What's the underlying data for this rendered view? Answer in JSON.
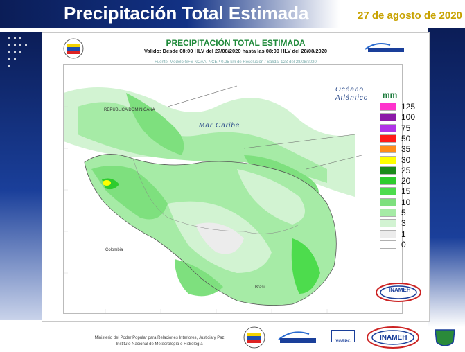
{
  "header": {
    "title": "Precipitación Total Estimada",
    "date": "27 de agosto de 2020"
  },
  "map": {
    "title": "PRECIPITACIÓN TOTAL ESTIMADA",
    "validity": "Valido: Desde 08:00 HLV del 27/08/2020 hasta las 08:00 HLV del 28/08/2020",
    "source": "Fuente: Modelo GFS NOAA_NCEP 0.25 km de Resolución / Salida: 12Z del 28/08/2020",
    "labels": {
      "mar_caribe": "Mar Caribe",
      "oceano": "Océano",
      "atlantico": "Atlántico",
      "colombia": "Colombia",
      "brasil": "Brasil",
      "rep_dominicana": "REPÚBLICA DOMINICANA"
    },
    "logo_text": "INAMEH"
  },
  "legend": {
    "unit": "mm",
    "items": [
      {
        "value": "125",
        "color": "#ff33cc"
      },
      {
        "value": "100",
        "color": "#8b1aa8"
      },
      {
        "value": "75",
        "color": "#b033e8"
      },
      {
        "value": "50",
        "color": "#ff1a1a"
      },
      {
        "value": "35",
        "color": "#ff8c1a"
      },
      {
        "value": "30",
        "color": "#ffff00"
      },
      {
        "value": "25",
        "color": "#1a8a1a"
      },
      {
        "value": "20",
        "color": "#2ecc2e"
      },
      {
        "value": "15",
        "color": "#4ddc4d"
      },
      {
        "value": "10",
        "color": "#7ee07e"
      },
      {
        "value": "5",
        "color": "#a6eba6"
      },
      {
        "value": "3",
        "color": "#d2f3d2"
      },
      {
        "value": "1",
        "color": "#ececec"
      },
      {
        "value": "0",
        "color": "#ffffff"
      }
    ]
  },
  "footer": {
    "line1": "Ministerio del Poder Popular para Relaciones Interiores, Justicia y Paz",
    "line2": "Instituto Nacional de Meteorología e Hidrología",
    "vgrpc": "VGRPC",
    "inameh": "INAMEH"
  }
}
